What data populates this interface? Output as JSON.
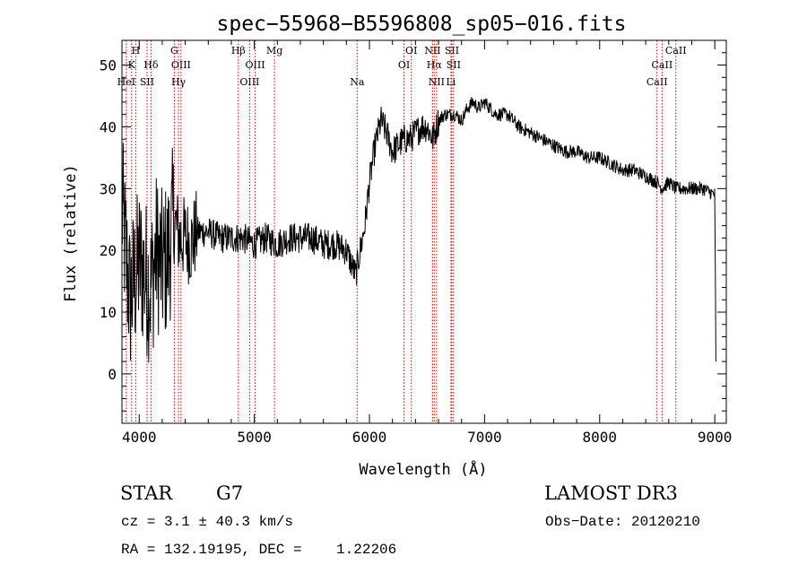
{
  "colors": {
    "spectrum": "#000000",
    "line_marker": "#cc0000",
    "axes": "#000000",
    "background": "#ffffff"
  },
  "chart_data": {
    "type": "line",
    "title": "spec−55968−B5596808_sp05−016.fits",
    "xlabel": "Wavelength (Å)",
    "ylabel": "Flux (relative)",
    "xlim": [
      3850,
      9100
    ],
    "ylim": [
      -8,
      54
    ],
    "xticks": [
      4000,
      5000,
      6000,
      7000,
      8000,
      9000
    ],
    "xtick_labels": [
      "4000",
      "5000",
      "6000",
      "7000",
      "8000",
      "9000"
    ],
    "yticks": [
      0,
      10,
      20,
      30,
      40,
      50
    ],
    "ytick_labels": [
      "0",
      "10",
      "20",
      "30",
      "40",
      "50"
    ],
    "series": [
      {
        "name": "spectrum",
        "x": [
          3850,
          3880,
          3920,
          3960,
          4000,
          4050,
          4100,
          4150,
          4200,
          4250,
          4300,
          4350,
          4400,
          4450,
          4500,
          4600,
          4700,
          4800,
          4900,
          5000,
          5100,
          5200,
          5300,
          5400,
          5500,
          5600,
          5700,
          5800,
          5880,
          5920,
          5960,
          6000,
          6050,
          6100,
          6150,
          6200,
          6250,
          6300,
          6350,
          6400,
          6450,
          6500,
          6550,
          6600,
          6650,
          6700,
          6750,
          6800,
          6850,
          6900,
          6950,
          7000,
          7050,
          7100,
          7200,
          7300,
          7400,
          7500,
          7600,
          7700,
          7800,
          7900,
          8000,
          8100,
          8200,
          8300,
          8400,
          8500,
          8540,
          8600,
          8662,
          8700,
          8800,
          8900,
          9000,
          9010
        ],
        "values": [
          27,
          20,
          12,
          15,
          18,
          16,
          14,
          20,
          17,
          19,
          25,
          22,
          22,
          21,
          23,
          23,
          22,
          22,
          22,
          21,
          22,
          21,
          22,
          22,
          22,
          21,
          21,
          20,
          16,
          20,
          24,
          31,
          37,
          41,
          39,
          36,
          37,
          38,
          38,
          39,
          40,
          40,
          38,
          41,
          42,
          42,
          42,
          41,
          43,
          44,
          43,
          44,
          43,
          42,
          42,
          40,
          39,
          38,
          37,
          36,
          36,
          35,
          35,
          34,
          33,
          33,
          32,
          31,
          30,
          31,
          30,
          30,
          30,
          30,
          29,
          2
        ]
      }
    ],
    "line_markers": [
      {
        "label": "H",
        "wavelength": 3970,
        "row": 0
      },
      {
        "label": "K",
        "wavelength": 3934,
        "row": 1
      },
      {
        "label": "HeI",
        "wavelength": 3888,
        "row": 2
      },
      {
        "label": "SII",
        "wavelength": 4068,
        "row": 2
      },
      {
        "label": "Hδ",
        "wavelength": 4102,
        "row": 1
      },
      {
        "label": "G",
        "wavelength": 4305,
        "row": 0
      },
      {
        "label": "OIII",
        "wavelength": 4363,
        "row": 1
      },
      {
        "label": "Hγ",
        "wavelength": 4341,
        "row": 2
      },
      {
        "label": "Hβ",
        "wavelength": 4861,
        "row": 0
      },
      {
        "label": "OIII",
        "wavelength": 4959,
        "row": 2
      },
      {
        "label": "OIII",
        "wavelength": 5007,
        "row": 1
      },
      {
        "label": "Mg",
        "wavelength": 5175,
        "row": 0
      },
      {
        "label": "Na",
        "wavelength": 5893,
        "row": 2
      },
      {
        "label": "OI",
        "wavelength": 6300,
        "row": 1
      },
      {
        "label": "OI",
        "wavelength": 6364,
        "row": 0
      },
      {
        "label": "NII",
        "wavelength": 6548,
        "row": 0
      },
      {
        "label": "Hα",
        "wavelength": 6563,
        "row": 1
      },
      {
        "label": "NII",
        "wavelength": 6583,
        "row": 2
      },
      {
        "label": "SII",
        "wavelength": 6716,
        "row": 0
      },
      {
        "label": "SII",
        "wavelength": 6731,
        "row": 1
      },
      {
        "label": "Li",
        "wavelength": 6708,
        "row": 2
      },
      {
        "label": "CaII",
        "wavelength": 8498,
        "row": 2
      },
      {
        "label": "CaII",
        "wavelength": 8542,
        "row": 1
      },
      {
        "label": "CaII",
        "wavelength": 8662,
        "row": 0
      }
    ]
  },
  "footer": {
    "object_class": "STAR",
    "subclass": "G7",
    "survey": "LAMOST DR3",
    "redshift": "cz = 3.1 ± 40.3 km/s",
    "obs_date": "Obs−Date: 20120210",
    "coords": "RA = 132.19195, DEC =    1.22206"
  }
}
